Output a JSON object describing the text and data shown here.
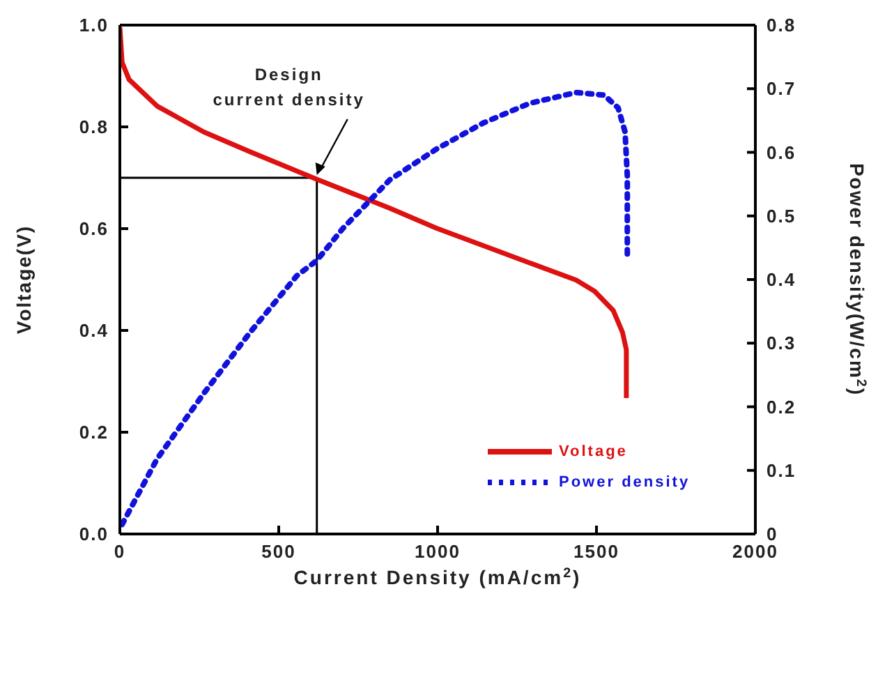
{
  "chart_data": {
    "type": "line",
    "xlabel": "Current Density (mA/cm$^{2}$)",
    "ylabel": "Voltage(V)",
    "y2label": "Power density(W/cm$^{2}$)",
    "xlim": [
      0,
      2000
    ],
    "xticks": [
      0,
      500,
      1000,
      1500,
      2000
    ],
    "ylim": [
      0,
      1
    ],
    "yticks": [
      {
        "value": 0,
        "label": "0.0"
      },
      {
        "value": 0.2,
        "label": "0.2"
      },
      {
        "value": 0.4,
        "label": "0.4"
      },
      {
        "value": 0.6,
        "label": "0.6"
      },
      {
        "value": 0.8,
        "label": "0.8"
      },
      {
        "value": 1,
        "label": "1.0"
      }
    ],
    "y2lim": [
      0,
      0.8
    ],
    "y2ticks": [
      0,
      0.1,
      0.2,
      0.3,
      0.4,
      0.5,
      0.6,
      0.7,
      0.8
    ],
    "series": [
      {
        "name": "Voltage",
        "color": "#dd1111",
        "line_style": "solid",
        "x": [
          0,
          7,
          29,
          117,
          264,
          410,
          620,
          850,
          996,
          1289,
          1436,
          1494,
          1553,
          1582,
          1594,
          1594
        ],
        "values": [
          0.996,
          0.927,
          0.893,
          0.841,
          0.79,
          0.751,
          0.697,
          0.64,
          0.601,
          0.533,
          0.499,
          0.477,
          0.439,
          0.396,
          0.362,
          0.267
        ]
      },
      {
        "name": "Power density",
        "color": "#1111dd",
        "line_style": "dotted",
        "axis": "y2",
        "x": [
          7,
          117,
          264,
          410,
          557,
          620,
          703,
          850,
          996,
          1143,
          1289,
          1436,
          1524,
          1568,
          1590,
          1597,
          1597
        ],
        "values": [
          0.015,
          0.118,
          0.221,
          0.317,
          0.406,
          0.43,
          0.481,
          0.557,
          0.605,
          0.646,
          0.677,
          0.694,
          0.69,
          0.67,
          0.632,
          0.563,
          0.44
        ]
      }
    ],
    "ref_lines": [
      {
        "axis": "x",
        "value": 620,
        "color": "#000000"
      },
      {
        "axis": "y",
        "value": 0.7,
        "color": "#000000"
      }
    ],
    "annotations": [
      {
        "text": "Design\ncurrent density",
        "x": 620,
        "y": 0.7
      }
    ],
    "marker": "none",
    "legend": "bottom right"
  }
}
